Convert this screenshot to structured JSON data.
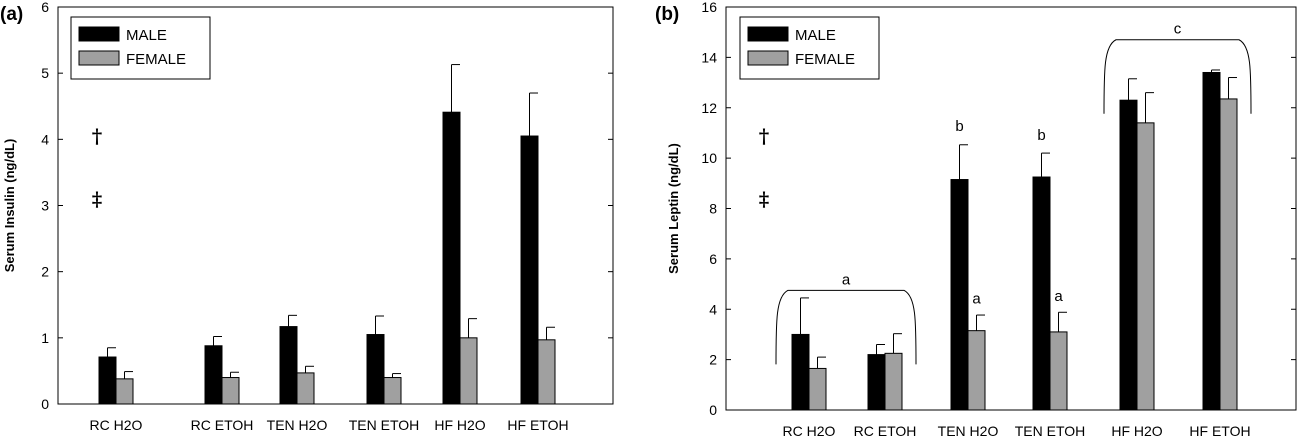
{
  "colors": {
    "male": "#000000",
    "female": "#a0a0a0"
  },
  "chart_data": [
    {
      "type": "bar",
      "panel_label": "(a)",
      "title": "",
      "xlabel": "",
      "ylabel": "Serum Insulin (ng/dL)",
      "ylim": [
        0,
        6
      ],
      "yticks": [
        "0",
        "1",
        "2",
        "3",
        "4",
        "5",
        "6"
      ],
      "categories": [
        "RC H2O",
        "RC ETOH",
        "TEN H2O",
        "TEN ETOH",
        "HF H2O",
        "HF ETOH"
      ],
      "legend_position": "top-left",
      "grid": false,
      "series": [
        {
          "name": "MALE",
          "values": [
            0.71,
            0.88,
            1.17,
            1.05,
            4.41,
            4.05
          ],
          "errors": [
            0.14,
            0.14,
            0.17,
            0.28,
            0.72,
            0.65
          ]
        },
        {
          "name": "FEMALE",
          "values": [
            0.38,
            0.4,
            0.47,
            0.4,
            1.0,
            0.97
          ],
          "errors": [
            0.11,
            0.08,
            0.1,
            0.06,
            0.29,
            0.19
          ]
        }
      ],
      "symbols": [
        "†",
        "‡"
      ],
      "annotations": []
    },
    {
      "type": "bar",
      "panel_label": "(b)",
      "title": "",
      "xlabel": "",
      "ylabel": "Serum Leptin (ng/dL)",
      "ylim": [
        0,
        16
      ],
      "yticks": [
        "0",
        "2",
        "4",
        "6",
        "8",
        "10",
        "12",
        "14",
        "16"
      ],
      "categories": [
        "RC H2O",
        "RC ETOH",
        "TEN H2O",
        "TEN ETOH",
        "HF H2O",
        "HF ETOH"
      ],
      "legend_position": "top-left",
      "grid": false,
      "series": [
        {
          "name": "MALE",
          "values": [
            3.0,
            2.2,
            9.15,
            9.25,
            12.3,
            13.4
          ],
          "errors": [
            1.45,
            0.4,
            1.38,
            0.95,
            0.85,
            0.1
          ]
        },
        {
          "name": "FEMALE",
          "values": [
            1.65,
            2.25,
            3.15,
            3.1,
            11.4,
            12.35
          ],
          "errors": [
            0.45,
            0.78,
            0.62,
            0.78,
            1.2,
            0.85
          ]
        }
      ],
      "symbols": [
        "†",
        "‡"
      ],
      "annotations": [
        {
          "text": "a",
          "groups": [
            0,
            1
          ],
          "value": 4.75
        },
        {
          "text": "b",
          "category": 2,
          "series": 0,
          "value": 10.95
        },
        {
          "text": "b",
          "category": 3,
          "series": 0,
          "value": 10.6
        },
        {
          "text": "a",
          "category": 2,
          "series": 1,
          "value": 4.1
        },
        {
          "text": "a",
          "category": 3,
          "series": 1,
          "value": 4.2
        },
        {
          "text": "c",
          "groups": [
            4,
            5
          ],
          "value": 14.7
        }
      ]
    }
  ]
}
